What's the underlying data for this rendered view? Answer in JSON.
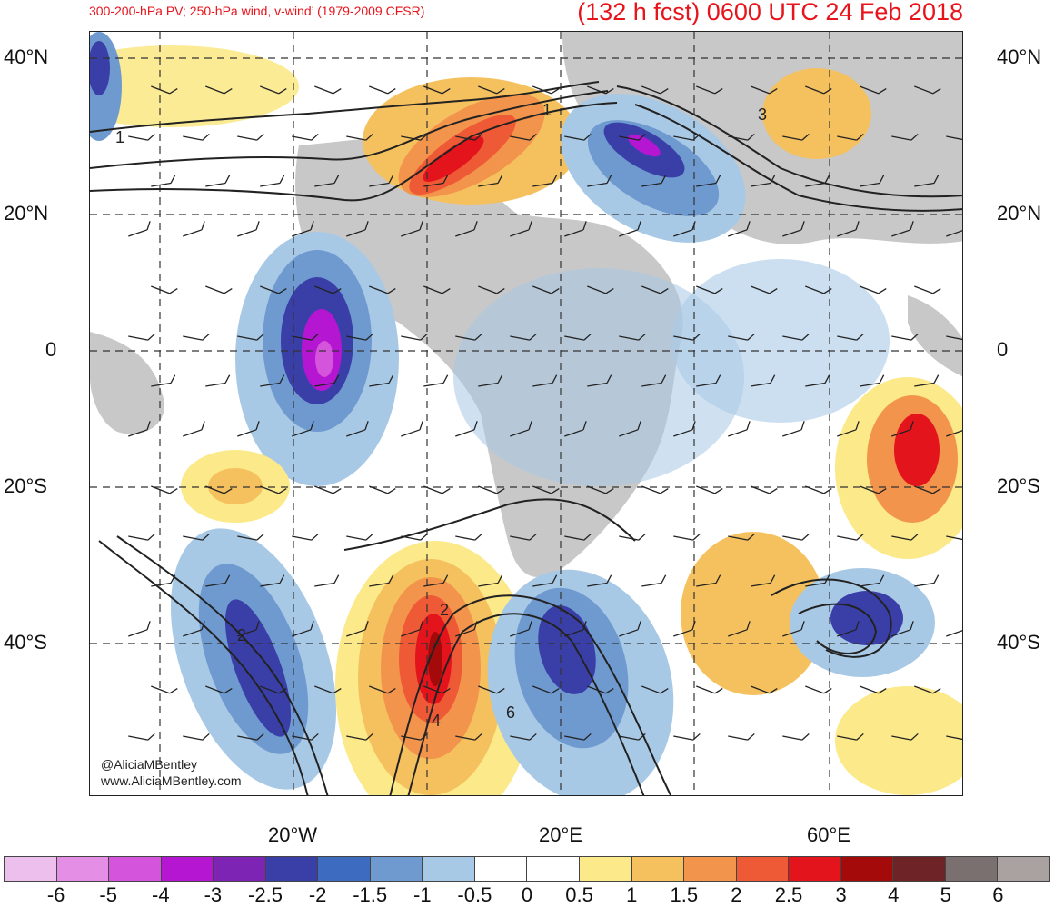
{
  "header": {
    "left_title": "300-200-hPa PV; 250-hPa wind, v-wind’ (1979-2009 CFSR)",
    "right_title": "(132 h fcst) 0600 UTC 24 Feb 2018"
  },
  "axes": {
    "lat_labels": [
      "40°N",
      "20°N",
      "0",
      "20°S",
      "40°S"
    ],
    "lon_labels": [
      "20°W",
      "20°E",
      "60°E"
    ]
  },
  "credit": {
    "handle": "@AliciaMBentley",
    "url": "www.AliciaMBentley.com"
  },
  "contour_labels": [
    "1",
    "1",
    "3",
    "2",
    "2",
    "4",
    "6"
  ],
  "colorbar": {
    "colors": [
      "#ecbfec",
      "#e58ee6",
      "#d554dc",
      "#b516d2",
      "#7d24b4",
      "#3a3fa8",
      "#3d6bbf",
      "#6f9ad0",
      "#a8c9e6",
      "#ffffff",
      "#ffffff",
      "#fbe98a",
      "#f5c15e",
      "#f3944c",
      "#ef5a36",
      "#e3141b",
      "#a50a0a",
      "#6e2427",
      "#7a7070",
      "#a9a2a0"
    ],
    "labels": [
      "-6",
      "-5",
      "-4",
      "-3",
      "-2.5",
      "-2",
      "-1.5",
      "-1",
      "-0.5",
      "0",
      "0.5",
      "1",
      "1.5",
      "2",
      "2.5",
      "3",
      "4",
      "5",
      "6"
    ]
  }
}
